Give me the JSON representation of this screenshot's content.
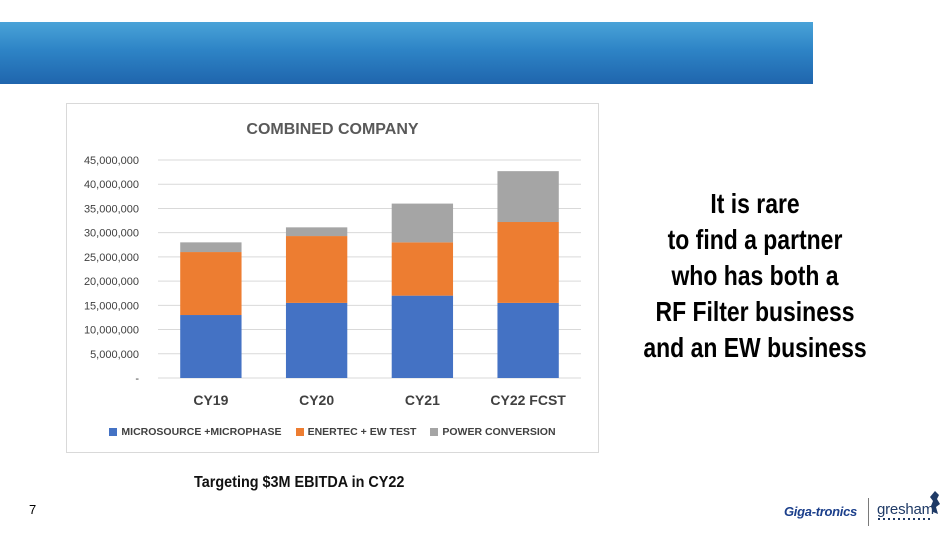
{
  "slide": {
    "page_number": "7",
    "headline_lines": [
      "It is rare",
      "to find a partner",
      "who has both a",
      "RF Filter business",
      "and an EW business"
    ],
    "footnote": "Targeting $3M EBITDA in CY22",
    "logos": {
      "gigatronics": "Giga-tronics",
      "gresham": "gresham"
    },
    "colors": {
      "banner": "#2e84c6"
    }
  },
  "chart_data": {
    "type": "bar",
    "stacked": true,
    "title": "COMBINED COMPANY",
    "categories": [
      "CY19",
      "CY20",
      "CY21",
      "CY22 FCST"
    ],
    "series": [
      {
        "name": "MICROSOURCE +MICROPHASE",
        "color": "#4472c4",
        "values": [
          13000000,
          15500000,
          17000000,
          15500000
        ]
      },
      {
        "name": "ENERTEC + EW TEST",
        "color": "#ed7d31",
        "values": [
          13000000,
          13800000,
          11000000,
          16700000
        ]
      },
      {
        "name": "POWER CONVERSION",
        "color": "#a5a5a5",
        "values": [
          2000000,
          1800000,
          8000000,
          10500000
        ]
      }
    ],
    "y_ticks": [
      "-",
      "5,000,000",
      "10,000,000",
      "15,000,000",
      "20,000,000",
      "25,000,000",
      "30,000,000",
      "35,000,000",
      "40,000,000",
      "45,000,000"
    ],
    "ylim": [
      0,
      45000000
    ],
    "grid": true,
    "legend_position": "bottom"
  }
}
